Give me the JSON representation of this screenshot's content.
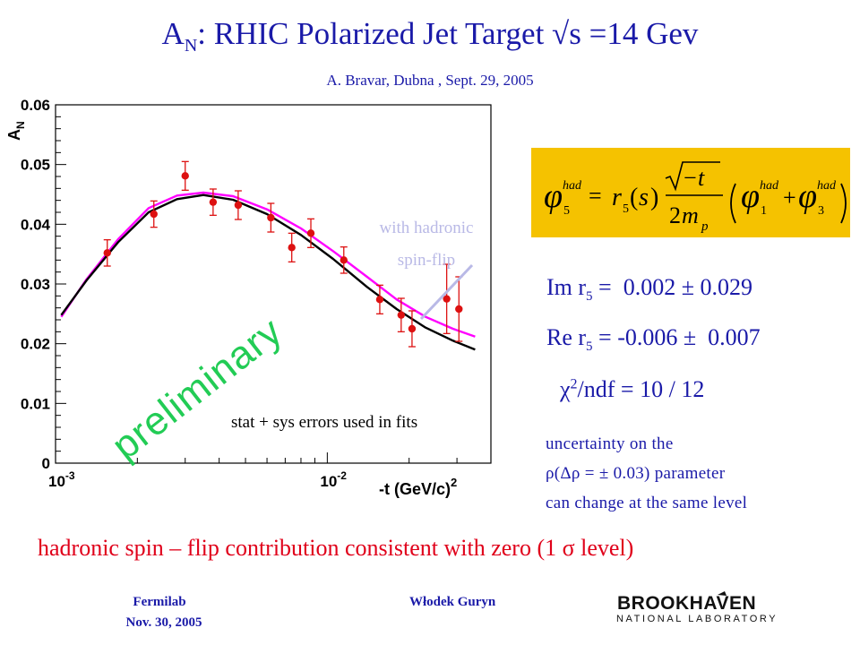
{
  "title": "A_N: RHIC Polarized Jet Target √s =14 Gev",
  "title_parts": {
    "a": "A",
    "sub": "N",
    "rest": ": RHIC Polarized Jet Target √s =14 Gev"
  },
  "subtitle": "A. Bravar, Dubna , Sept. 29, 2005",
  "formula_alt": "φ5^had = r5(s) √(−t)/(2m_p) (φ1^had + φ3^had)",
  "fit_results": {
    "im_label": "Im r",
    "im_sub": "5",
    "im_value": " =  0.002 ± 0.029",
    "re_label": "Re r",
    "re_sub": "5",
    "re_value": " = -0.006 ±  0.007",
    "chi_pre": "χ",
    "chi_sup": "2",
    "chi_value": "/ndf = 10 / 12"
  },
  "uncertainty_note": {
    "line1": "uncertainty on the",
    "line2": "ρ(Δρ = ± 0.03) parameter",
    "line3": "can change at the same level"
  },
  "conclusion": "hadronic spin – flip contribution consistent with zero (1 σ level)",
  "footer": {
    "left_line1": "Fermilab",
    "left_line2": "Nov. 30, 2005",
    "middle": "Włodek Guryn",
    "logo_line1": "BROOKHAVEN",
    "logo_line2": "NATIONAL LABORATORY"
  },
  "colors": {
    "accent_blue": "#1a1aa8",
    "highlight_red": "#e0001a",
    "formula_bg": "#f5c200",
    "fit_magenta": "#ff00ff",
    "fit_black": "#000000",
    "data_red": "#dd1111",
    "preliminary_green": "#22cc55"
  },
  "chart_data": {
    "type": "scatter",
    "xscale": "log",
    "xlim": [
      0.001,
      0.04
    ],
    "ylim": [
      0,
      0.06
    ],
    "ylabel_parts": {
      "main": "A",
      "sub": "N"
    },
    "xlabel_parts": {
      "main": "-t (GeV/c)",
      "sup": "2"
    },
    "yticks": [
      0,
      0.01,
      0.02,
      0.03,
      0.04,
      0.05,
      0.06
    ],
    "ytick_labels": [
      "0",
      "0.01",
      "0.02",
      "0.03",
      "0.04",
      "0.05",
      "0.06"
    ],
    "xtick_majors": [
      {
        "base": "10",
        "exp": "-3",
        "value": 0.001
      },
      {
        "base": "10",
        "exp": "-2",
        "value": 0.01
      }
    ],
    "points": [
      {
        "x": 0.00155,
        "y": 0.0352,
        "err": 0.0022
      },
      {
        "x": 0.0023,
        "y": 0.0417,
        "err": 0.0022
      },
      {
        "x": 0.003,
        "y": 0.0481,
        "err": 0.0024
      },
      {
        "x": 0.0038,
        "y": 0.0437,
        "err": 0.0022
      },
      {
        "x": 0.0047,
        "y": 0.0432,
        "err": 0.0024
      },
      {
        "x": 0.0062,
        "y": 0.0411,
        "err": 0.0024
      },
      {
        "x": 0.0074,
        "y": 0.0361,
        "err": 0.0024
      },
      {
        "x": 0.0087,
        "y": 0.0385,
        "err": 0.0024
      },
      {
        "x": 0.0115,
        "y": 0.034,
        "err": 0.0022
      },
      {
        "x": 0.0156,
        "y": 0.0274,
        "err": 0.0024
      },
      {
        "x": 0.0187,
        "y": 0.0248,
        "err": 0.0028
      },
      {
        "x": 0.0205,
        "y": 0.0225,
        "err": 0.003
      },
      {
        "x": 0.0275,
        "y": 0.0275,
        "err": 0.0058
      },
      {
        "x": 0.0305,
        "y": 0.0258,
        "err": 0.0054
      }
    ],
    "fit_with_flip": {
      "x": [
        0.00105,
        0.0013,
        0.0017,
        0.0022,
        0.0028,
        0.0035,
        0.0045,
        0.006,
        0.008,
        0.0105,
        0.014,
        0.018,
        0.023,
        0.029,
        0.035
      ],
      "y": [
        0.0245,
        0.0308,
        0.0375,
        0.0427,
        0.0448,
        0.0453,
        0.0447,
        0.0425,
        0.0393,
        0.0355,
        0.0312,
        0.0274,
        0.0245,
        0.0225,
        0.0212
      ]
    },
    "fit_no_flip": {
      "x": [
        0.00105,
        0.0013,
        0.0017,
        0.0022,
        0.0028,
        0.0035,
        0.0045,
        0.006,
        0.008,
        0.0105,
        0.014,
        0.018,
        0.023,
        0.029,
        0.035
      ],
      "y": [
        0.0248,
        0.0306,
        0.037,
        0.042,
        0.0442,
        0.0449,
        0.0441,
        0.0417,
        0.0382,
        0.0342,
        0.0295,
        0.0258,
        0.0227,
        0.0205,
        0.019
      ]
    },
    "annotations": {
      "with_flip": "with hadronic spin-flip",
      "with_flip_line1": "with hadronic",
      "with_flip_line2": "spin-flip",
      "preliminary": "preliminary",
      "errors_note": "stat + sys errors used in fits"
    }
  }
}
